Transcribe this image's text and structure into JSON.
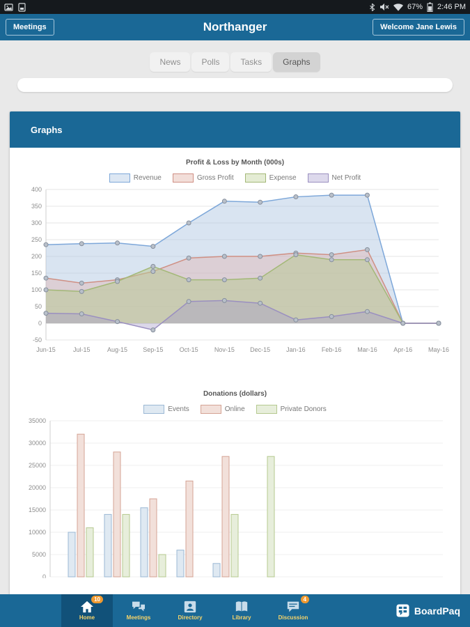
{
  "status_bar": {
    "time": "2:46 PM",
    "battery": "67%"
  },
  "header": {
    "title": "Northanger",
    "left_button": "Meetings",
    "right_button": "Welcome Jane Lewis"
  },
  "tabs": [
    {
      "label": "News",
      "selected": false
    },
    {
      "label": "Polls",
      "selected": false
    },
    {
      "label": "Tasks",
      "selected": false
    },
    {
      "label": "Graphs",
      "selected": true
    }
  ],
  "graphs_card": {
    "title": "Graphs"
  },
  "chart_data": [
    {
      "type": "area",
      "title": "Profit & Loss by Month (000s)",
      "categories": [
        "Jun-15",
        "Jul-15",
        "Aug-15",
        "Sep-15",
        "Oct-15",
        "Nov-15",
        "Dec-15",
        "Jan-16",
        "Feb-16",
        "Mar-16",
        "Apr-16",
        "May-16"
      ],
      "series": [
        {
          "name": "Revenue",
          "color": "#7da7d9",
          "fill": "rgba(170,195,225,0.45)",
          "legend_fill": "#dde7f3",
          "values": [
            235,
            238,
            240,
            230,
            300,
            365,
            362,
            378,
            383,
            383,
            0,
            0
          ]
        },
        {
          "name": "Gross Profit",
          "color": "#cf9084",
          "fill": "rgba(225,170,160,0.35)",
          "legend_fill": "#f2ded9",
          "values": [
            135,
            120,
            130,
            155,
            195,
            200,
            200,
            210,
            205,
            220,
            0,
            0
          ]
        },
        {
          "name": "Expense",
          "color": "#a3b877",
          "fill": "rgba(185,200,150,0.55)",
          "legend_fill": "#e4ecd4",
          "values": [
            100,
            95,
            125,
            170,
            130,
            130,
            135,
            205,
            190,
            190,
            0,
            0
          ]
        },
        {
          "name": "Net Profit",
          "color": "#9a8fc0",
          "fill": "rgba(165,155,200,0.40)",
          "legend_fill": "#ddd9ec",
          "values": [
            30,
            28,
            5,
            -20,
            65,
            68,
            60,
            10,
            20,
            35,
            0,
            0
          ]
        }
      ],
      "ylim": [
        -50,
        400
      ],
      "ytick_step": 50,
      "grid": true,
      "legend_position": "top"
    },
    {
      "type": "bar",
      "title": "Donations (dollars)",
      "categories": [
        "",
        "",
        "",
        "",
        "",
        ""
      ],
      "xlabels_visible": false,
      "series": [
        {
          "name": "Events",
          "color": "#9bb8d4",
          "fill": "#dfe9f2",
          "legend_fill": "#dfe9f2",
          "values": [
            10000,
            14000,
            15500,
            6000,
            3000,
            0
          ]
        },
        {
          "name": "Online",
          "color": "#d4a394",
          "fill": "#f2e0da",
          "legend_fill": "#f2e0da",
          "values": [
            32000,
            28000,
            17500,
            21500,
            27000,
            0
          ]
        },
        {
          "name": "Private Donors",
          "color": "#b5c98f",
          "fill": "#e7eedb",
          "legend_fill": "#e7eedb",
          "values": [
            11000,
            14000,
            5000,
            0,
            14000,
            27000
          ]
        }
      ],
      "ylim": [
        0,
        35000
      ],
      "ytick_step": 5000,
      "grid": true,
      "legend_position": "top"
    }
  ],
  "footer": {
    "items": [
      {
        "label": "Home",
        "badge": "10",
        "active": true
      },
      {
        "label": "Meetings"
      },
      {
        "label": "Directory"
      },
      {
        "label": "Library"
      },
      {
        "label": "Discussion",
        "badge": "4"
      }
    ],
    "brand": "BoardPaq"
  },
  "colors": {
    "header_bg": "#1a6896",
    "status_bar_bg": "#15191d",
    "badge_orange": "#f09a30",
    "nav_label_yellow": "#f7d469"
  }
}
